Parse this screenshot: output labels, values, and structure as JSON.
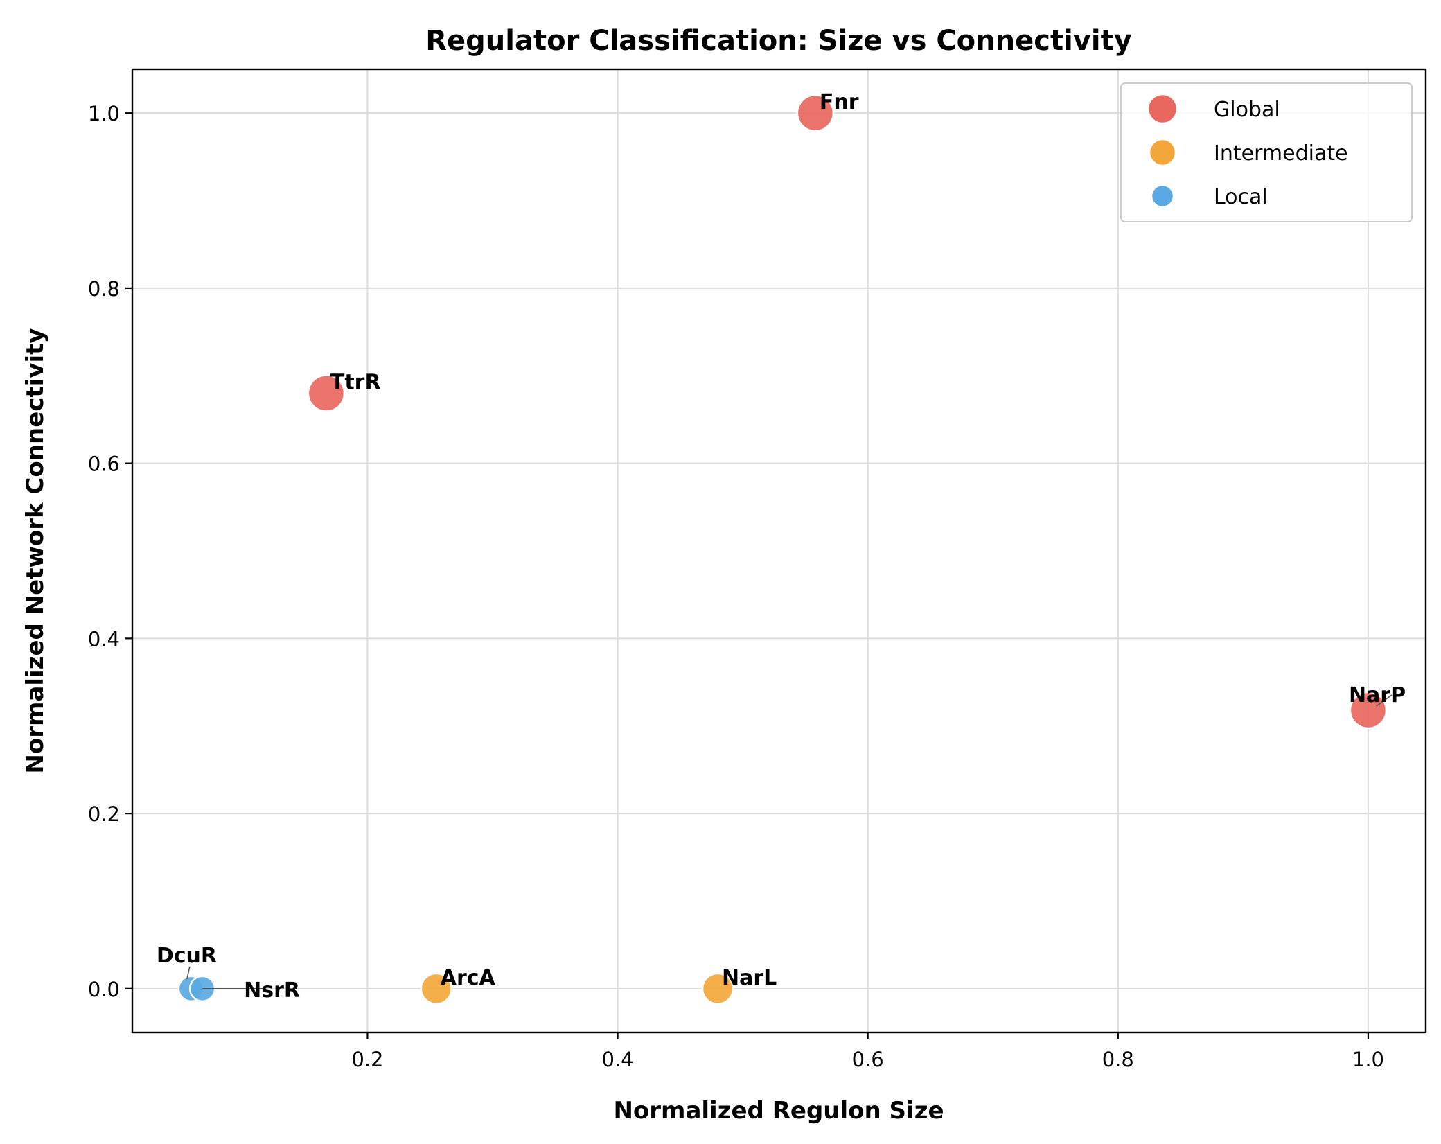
{
  "chart_data": {
    "type": "scatter",
    "title": "Regulator Classification: Size vs Connectivity",
    "xlabel": "Normalized Regulon Size",
    "ylabel": "Normalized Network Connectivity",
    "xlim": [
      0.012,
      1.046
    ],
    "ylim": [
      -0.05,
      1.05
    ],
    "xticks": [
      0.2,
      0.4,
      0.6,
      0.8,
      1.0
    ],
    "xtick_labels": [
      "0.2",
      "0.4",
      "0.6",
      "0.8",
      "1.0"
    ],
    "yticks": [
      0.0,
      0.2,
      0.4,
      0.6,
      0.8,
      1.0
    ],
    "ytick_labels": [
      "0.0",
      "0.2",
      "0.4",
      "0.6",
      "0.8",
      "1.0"
    ],
    "grid": true,
    "legend_position": "top-right",
    "series": [
      {
        "name": "Global",
        "color": "#e8685f",
        "points": [
          {
            "label": "Fnr",
            "x": 0.558,
            "y": 1.0
          },
          {
            "label": "TtrR",
            "x": 0.167,
            "y": 0.68
          },
          {
            "label": "NarP",
            "x": 1.0,
            "y": 0.318
          }
        ]
      },
      {
        "name": "Intermediate",
        "color": "#f3a73b",
        "points": [
          {
            "label": "ArcA",
            "x": 0.255,
            "y": 0.0
          },
          {
            "label": "NarL",
            "x": 0.48,
            "y": 0.0
          }
        ]
      },
      {
        "name": "Local",
        "color": "#5aa9e2",
        "points": [
          {
            "label": "DcuR",
            "x": 0.059,
            "y": 0.0
          },
          {
            "label": "NsrR",
            "x": 0.068,
            "y": 0.0
          }
        ]
      }
    ]
  }
}
